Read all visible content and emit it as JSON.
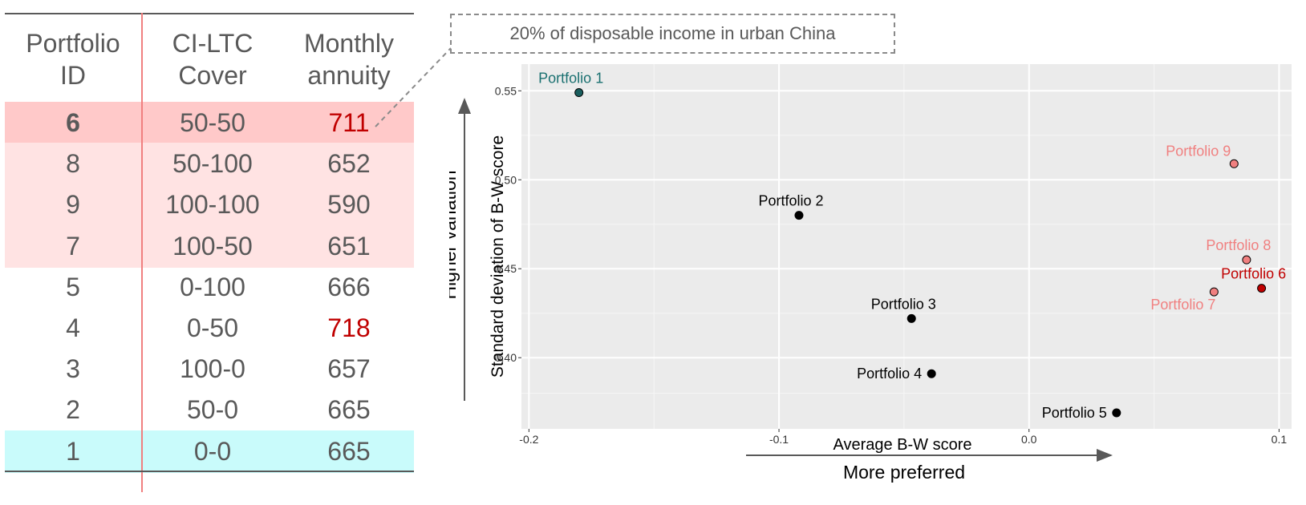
{
  "table": {
    "headers": {
      "id": [
        "Portfolio",
        "ID"
      ],
      "cover": [
        "CI-LTC",
        "Cover"
      ],
      "annuity": [
        "Monthly",
        "annuity"
      ]
    },
    "rows": [
      {
        "id": "6",
        "cover": "50-50",
        "annuity": "711",
        "bg": "#ffc9c9",
        "bold": true,
        "annuity_color": "#c00000"
      },
      {
        "id": "8",
        "cover": "50-100",
        "annuity": "652",
        "bg": "#ffe3e3",
        "bold": false,
        "annuity_color": ""
      },
      {
        "id": "9",
        "cover": "100-100",
        "annuity": "590",
        "bg": "#ffe3e3",
        "bold": false,
        "annuity_color": ""
      },
      {
        "id": "7",
        "cover": "100-50",
        "annuity": "651",
        "bg": "#ffe3e3",
        "bold": false,
        "annuity_color": ""
      },
      {
        "id": "5",
        "cover": "0-100",
        "annuity": "666",
        "bg": "",
        "bold": false,
        "annuity_color": ""
      },
      {
        "id": "4",
        "cover": "0-50",
        "annuity": "718",
        "bg": "",
        "bold": false,
        "annuity_color": "#c00000"
      },
      {
        "id": "3",
        "cover": "100-0",
        "annuity": "657",
        "bg": "",
        "bold": false,
        "annuity_color": ""
      },
      {
        "id": "2",
        "cover": "50-0",
        "annuity": "665",
        "bg": "",
        "bold": false,
        "annuity_color": ""
      },
      {
        "id": "1",
        "cover": "0-0",
        "annuity": "665",
        "bg": "#c9fbfb",
        "bold": false,
        "annuity_color": ""
      }
    ]
  },
  "callout": {
    "text": "20% of disposable income in urban China"
  },
  "chart_data": {
    "type": "scatter",
    "title": "",
    "xlabel": "Average B-W score",
    "ylabel": "Standard deviation of B-W score",
    "x_arrow_label": "More preferred",
    "y_arrow_label": "Higher variation",
    "xlim": [
      -0.203,
      0.105
    ],
    "ylim": [
      0.36,
      0.565
    ],
    "x_ticks": [
      -0.2,
      -0.1,
      0.0,
      0.1
    ],
    "x_tick_labels": [
      "-0.2",
      "-0.1",
      "0.0",
      "0.1"
    ],
    "y_ticks": [
      0.4,
      0.45,
      0.5,
      0.55
    ],
    "y_tick_labels": [
      "0.40",
      "0.45",
      "0.50",
      "0.55"
    ],
    "grid": true,
    "panel_color": "#ebebeb",
    "points": [
      {
        "label": "Portfolio 1",
        "x": -0.18,
        "y": 0.549,
        "color": "#1a5e5e",
        "label_color": "#1a7070",
        "label_pos": "above"
      },
      {
        "label": "Portfolio 2",
        "x": -0.092,
        "y": 0.48,
        "color": "#000000",
        "label_color": "#000000",
        "label_pos": "above"
      },
      {
        "label": "Portfolio 3",
        "x": -0.047,
        "y": 0.422,
        "color": "#000000",
        "label_color": "#000000",
        "label_pos": "above"
      },
      {
        "label": "Portfolio 4",
        "x": -0.039,
        "y": 0.391,
        "color": "#000000",
        "label_color": "#000000",
        "label_pos": "left"
      },
      {
        "label": "Portfolio 5",
        "x": 0.035,
        "y": 0.369,
        "color": "#000000",
        "label_color": "#000000",
        "label_pos": "left"
      },
      {
        "label": "Portfolio 6",
        "x": 0.093,
        "y": 0.439,
        "color": "#c00000",
        "label_color": "#c00000",
        "label_pos": "above"
      },
      {
        "label": "Portfolio 7",
        "x": 0.074,
        "y": 0.437,
        "color": "#f08080",
        "label_color": "#f08080",
        "label_pos": "below-left"
      },
      {
        "label": "Portfolio 8",
        "x": 0.087,
        "y": 0.455,
        "color": "#f08080",
        "label_color": "#f08080",
        "label_pos": "above"
      },
      {
        "label": "Portfolio 9",
        "x": 0.082,
        "y": 0.509,
        "color": "#f08080",
        "label_color": "#f08080",
        "label_pos": "above-left"
      }
    ]
  }
}
